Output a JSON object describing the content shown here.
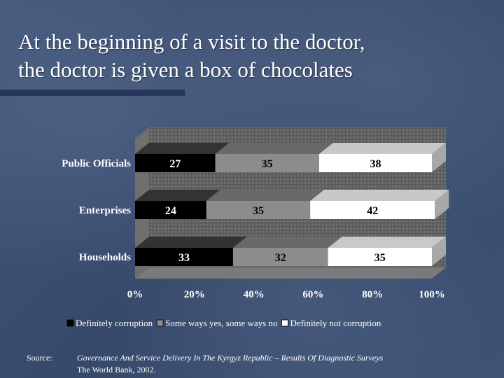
{
  "slide": {
    "title_line1": "At the beginning of a visit to the doctor,",
    "title_line2": "the doctor is given a box of chocolates",
    "source_label": "Source:",
    "source_reference": "Governance And Service Delivery In The Kyrgyz Republic – Results Of Diagnostic Surveys",
    "source_publisher": "The World Bank, 2002."
  },
  "chart_data": {
    "type": "bar",
    "orientation": "horizontal",
    "stacked": true,
    "stacking": "percent",
    "categories": [
      "Public Officials",
      "Enterprises",
      "Households"
    ],
    "series": [
      {
        "name": "Definitely corruption",
        "values": [
          27,
          24,
          33
        ],
        "color": "#000000"
      },
      {
        "name": "Some ways yes, some ways no",
        "values": [
          35,
          35,
          32
        ],
        "color": "#8c8c8c"
      },
      {
        "name": "Definitely not corruption",
        "values": [
          38,
          42,
          35
        ],
        "color": "#ffffff"
      }
    ],
    "x_ticks": [
      "0%",
      "20%",
      "40%",
      "60%",
      "80%",
      "100%"
    ],
    "xlim": [
      0,
      100
    ],
    "legend": "bottom",
    "three_d": true,
    "grid": false
  }
}
